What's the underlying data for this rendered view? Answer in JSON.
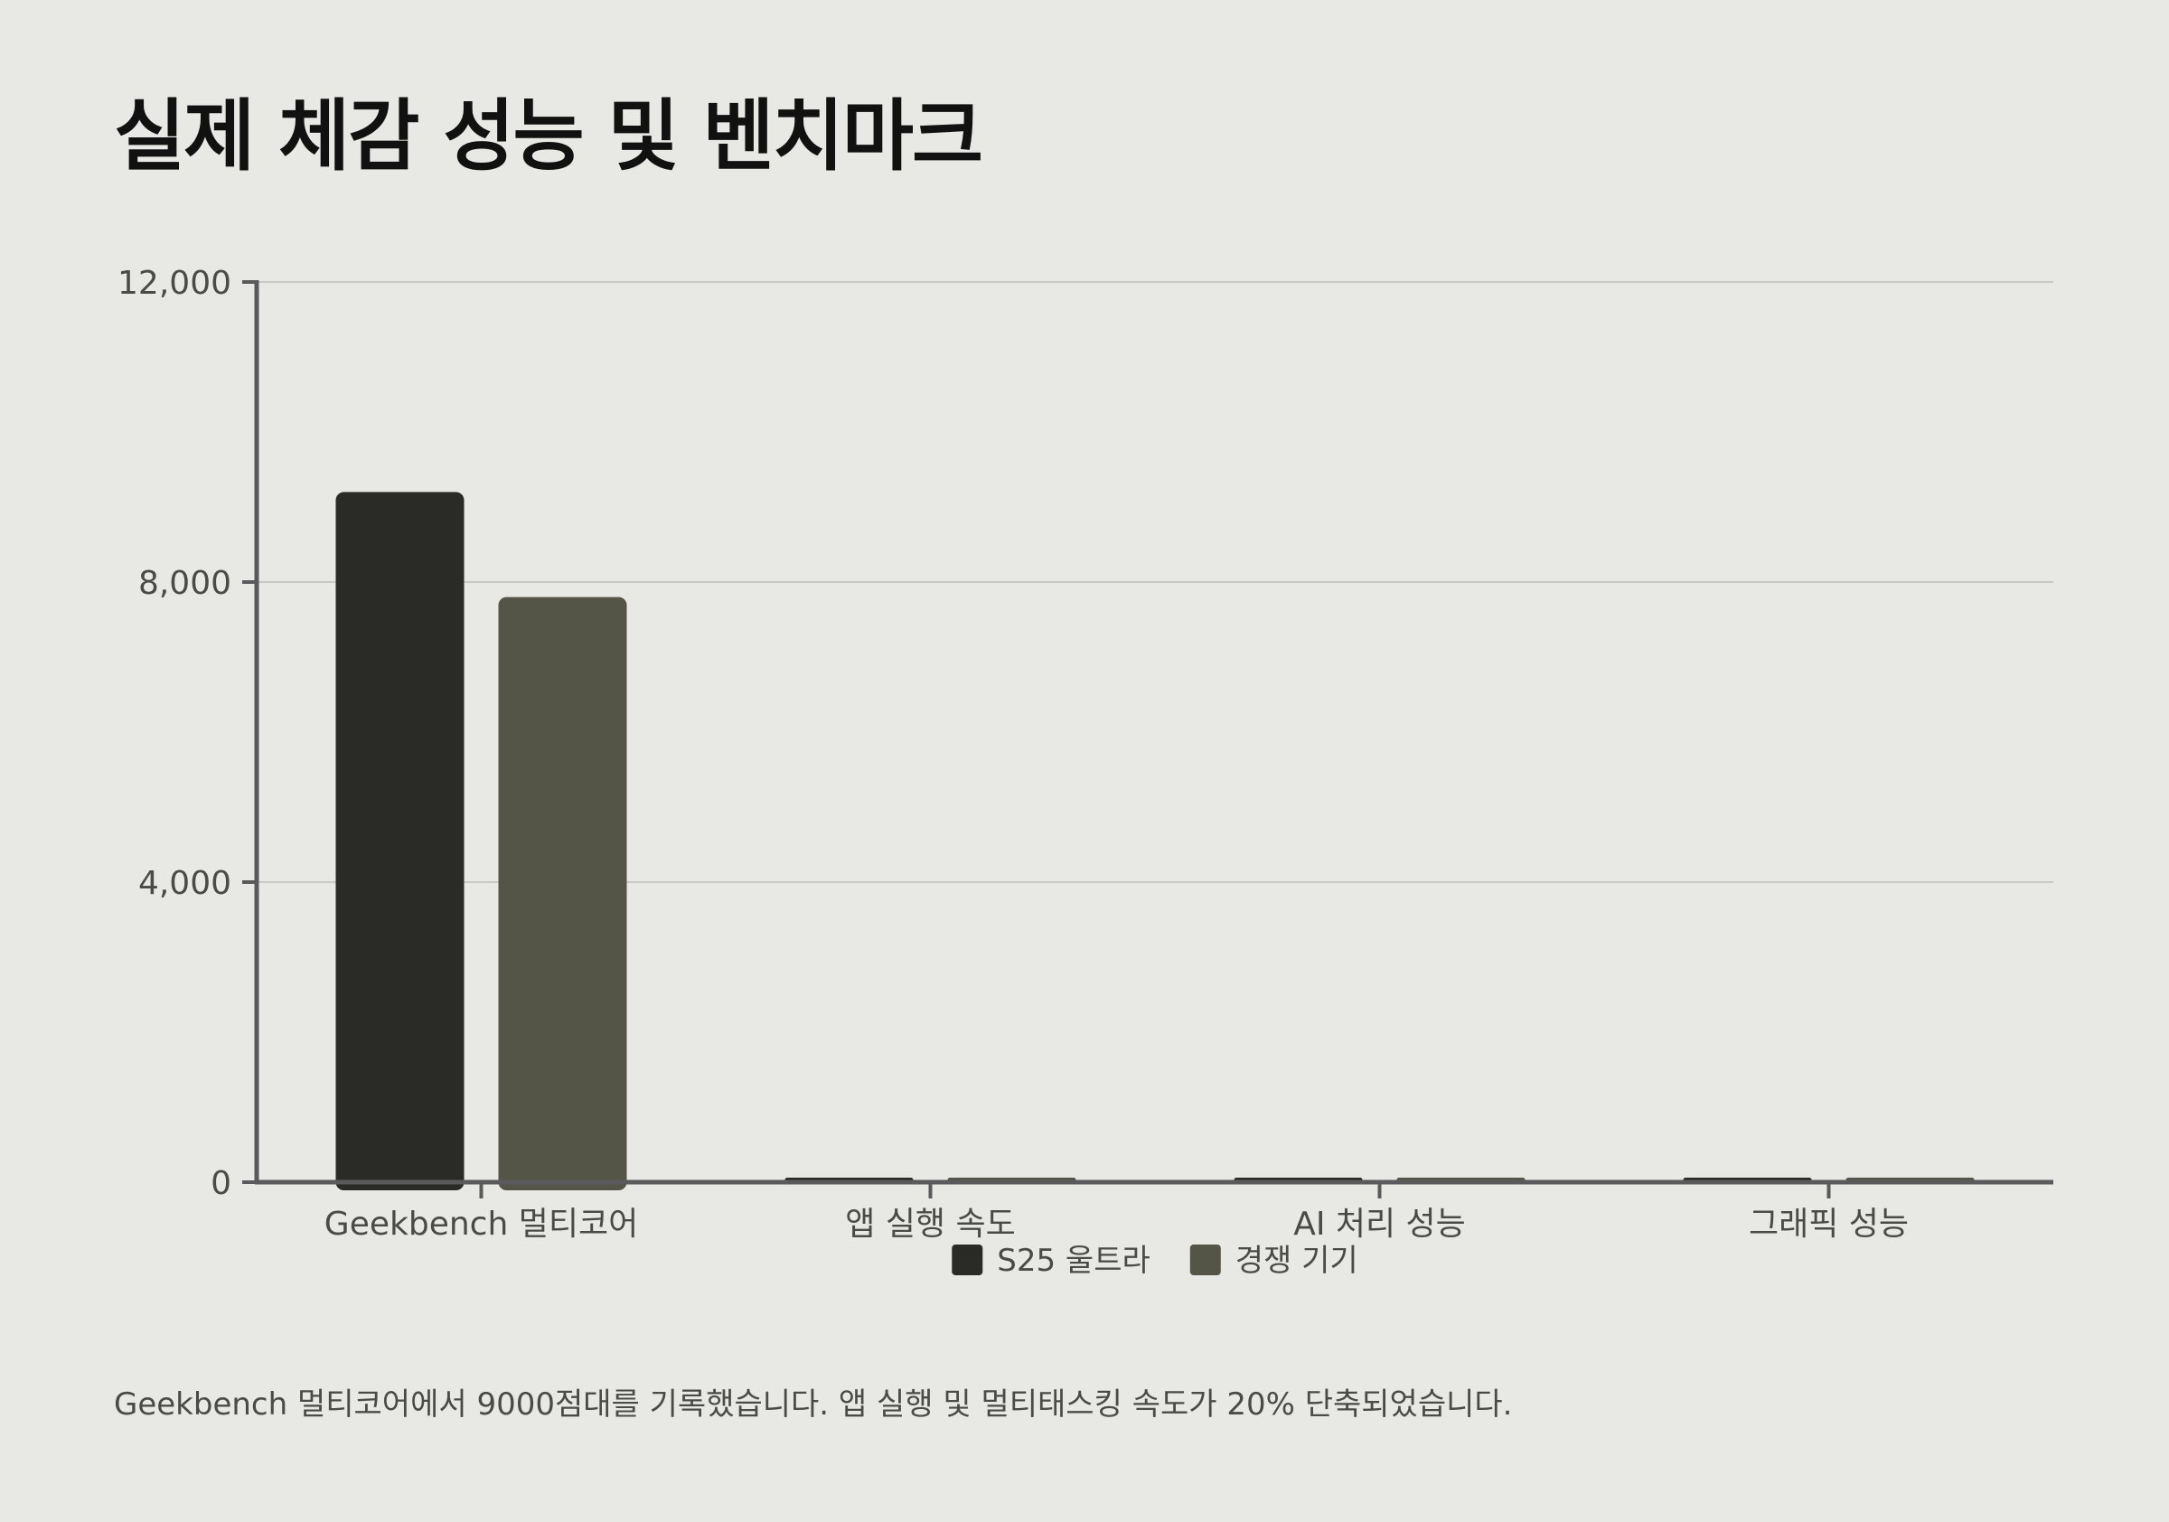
{
  "title": "실제 체감 성능 및 벤치마크",
  "caption": "Geekbench 멀티코어에서 9000점대를 기록했습니다. 앱 실행 및 멀티태스킹 속도가 20% 단축되었습니다.",
  "colors": {
    "background": "#e8e8e4",
    "series_1": "#2a2b26",
    "series_2": "#545447",
    "axis": "#5a5a5c",
    "grid": "#c8c8c4"
  },
  "chart_data": {
    "type": "bar",
    "title": "",
    "xlabel": "",
    "ylabel": "",
    "categories": [
      "Geekbench 멀티코어",
      "앱 실행 속도",
      "AI 처리 성능",
      "그래픽 성능"
    ],
    "series": [
      {
        "name": "S25 울트라",
        "values": [
          9200,
          40,
          40,
          40
        ]
      },
      {
        "name": "경쟁 기기",
        "values": [
          7800,
          20,
          20,
          40
        ]
      }
    ],
    "ylim": [
      0,
      12000
    ],
    "yticks": [
      0,
      4000,
      8000,
      12000
    ],
    "ytick_labels": [
      "0",
      "4,000",
      "8,000",
      "12,000"
    ],
    "grid": true,
    "legend_position": "bottom-center"
  }
}
